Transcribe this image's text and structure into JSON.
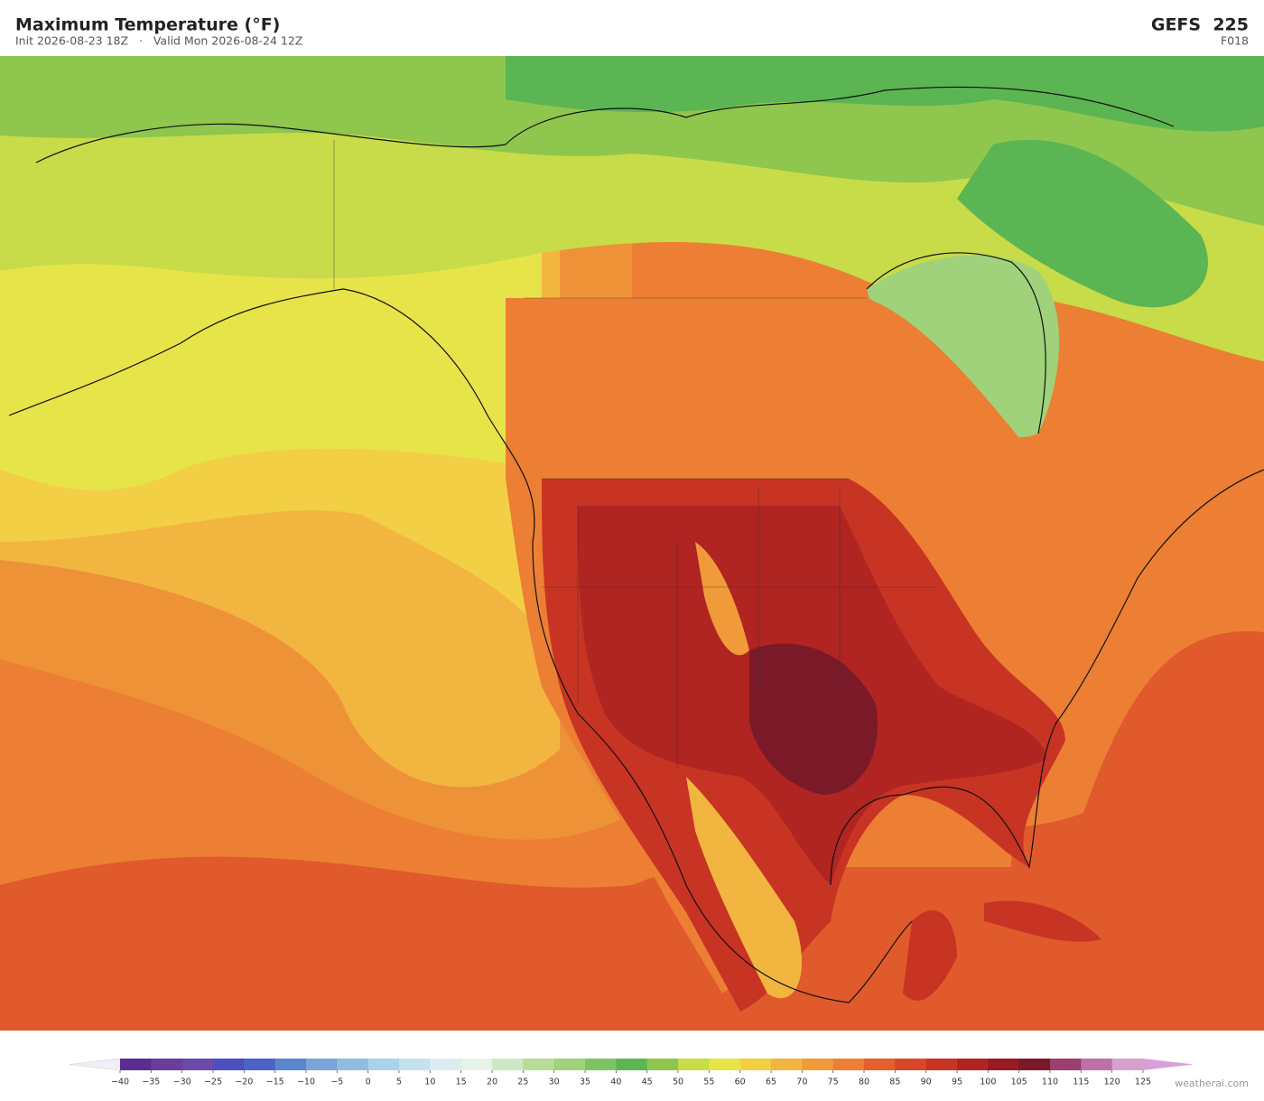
{
  "header": {
    "title": "Maximum Temperature  (°F)",
    "subtitle": "Init 2026-08-23 18Z   ·   Valid Mon 2026-08-24 12Z",
    "model": "GEFS  225",
    "forecast_hour": "F018"
  },
  "colorbar": {
    "ticks": [
      {
        "value": -40,
        "label": "−40"
      },
      {
        "value": -35,
        "label": "−35"
      },
      {
        "value": -30,
        "label": "−30"
      },
      {
        "value": -25,
        "label": "−25"
      },
      {
        "value": -20,
        "label": "−20"
      },
      {
        "value": -15,
        "label": "−15"
      },
      {
        "value": -10,
        "label": "−10"
      },
      {
        "value": -5,
        "label": "−5"
      },
      0,
      5,
      10,
      15,
      20,
      25,
      30,
      35,
      40,
      45,
      50,
      55,
      60,
      65,
      70,
      75,
      80,
      85,
      90,
      95,
      100,
      105,
      110,
      115,
      120,
      125
    ],
    "colors": [
      "#5b2d8e",
      "#6a3d9a",
      "#6b4aa8",
      "#4b4fc0",
      "#4a64c8",
      "#5a86cc",
      "#7aa4d8",
      "#93bde0",
      "#a9d3ea",
      "#c4e2ee",
      "#dcedf2",
      "#e6f3e6",
      "#cde8c5",
      "#b7dc98",
      "#9fd27b",
      "#7cc463",
      "#5bb552",
      "#8ec64e",
      "#c7dc48",
      "#e7e44a",
      "#f2cf45",
      "#f2b540",
      "#f09a3a",
      "#ec7f33",
      "#e4602c",
      "#d84828",
      "#c83424",
      "#b02422",
      "#961b22",
      "#7a1a28",
      "#9c4070",
      "#be70a8",
      "#d8a0cc"
    ],
    "under_color": "#f2eef8",
    "over_color": "#d8a0d8"
  },
  "footer": {
    "watermark": "weatherai.com"
  }
}
